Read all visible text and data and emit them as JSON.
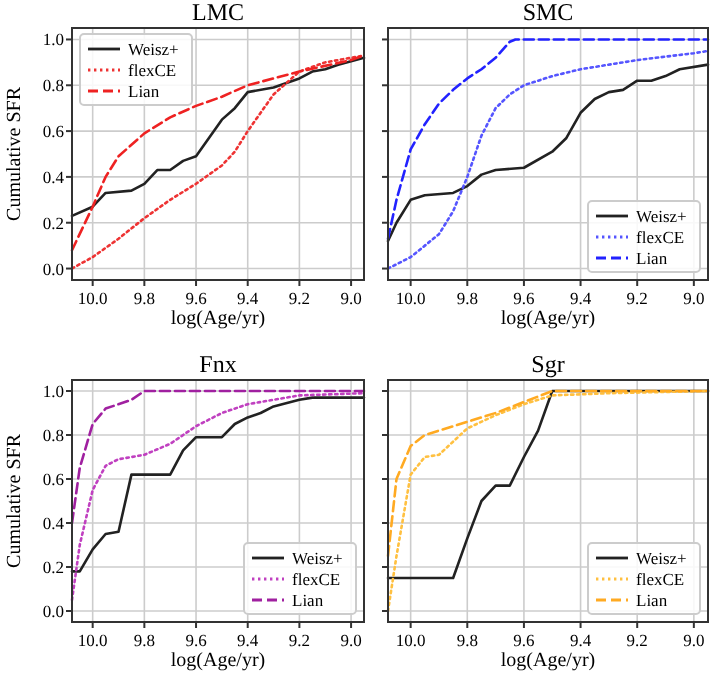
{
  "chart_data": [
    {
      "type": "line",
      "title": "LMC",
      "xlabel": "log(Age/yr)",
      "ylabel": "Cumulative SFR",
      "xlim": [
        10.08,
        8.95
      ],
      "ylim": [
        -0.05,
        1.05
      ],
      "xticks": [
        {
          "value": 10,
          "label": "10.0"
        },
        {
          "value": 9.8,
          "label": "9.8"
        },
        {
          "value": 9.6,
          "label": "9.6"
        },
        {
          "value": 9.4,
          "label": "9.4"
        },
        {
          "value": 9.2,
          "label": "9.2"
        },
        {
          "value": 9,
          "label": "9.0"
        }
      ],
      "yticks": [
        {
          "value": 0,
          "label": "0.0"
        },
        {
          "value": 0.2,
          "label": "0.2"
        },
        {
          "value": 0.4,
          "label": "0.4"
        },
        {
          "value": 0.6,
          "label": "0.6"
        },
        {
          "value": 0.8,
          "label": "0.8"
        },
        {
          "value": 1,
          "label": "1.0"
        }
      ],
      "grid": true,
      "legend": "top left",
      "series": [
        {
          "name": "Weisz+",
          "color": "#222222",
          "line_style": "solid",
          "x": [
            10.08,
            10,
            9.95,
            9.85,
            9.8,
            9.75,
            9.7,
            9.65,
            9.6,
            9.55,
            9.5,
            9.45,
            9.4,
            9.3,
            9.2,
            9.15,
            9.1,
            9.05,
            8.95
          ],
          "values": [
            0.23,
            0.27,
            0.33,
            0.34,
            0.37,
            0.43,
            0.43,
            0.47,
            0.49,
            0.57,
            0.65,
            0.7,
            0.77,
            0.79,
            0.83,
            0.86,
            0.87,
            0.89,
            0.92
          ]
        },
        {
          "name": "flexCE",
          "color": "#ee3333",
          "line_style": "dotted",
          "x": [
            10.08,
            10,
            9.9,
            9.8,
            9.7,
            9.6,
            9.5,
            9.45,
            9.4,
            9.3,
            9.2,
            9.1,
            8.95
          ],
          "values": [
            0,
            0.05,
            0.13,
            0.22,
            0.3,
            0.37,
            0.45,
            0.51,
            0.6,
            0.76,
            0.86,
            0.9,
            0.93
          ]
        },
        {
          "name": "Lian",
          "color": "#ee2222",
          "line_style": "dashed",
          "x": [
            10.08,
            10,
            9.95,
            9.9,
            9.8,
            9.7,
            9.6,
            9.5,
            9.4,
            9.2,
            9,
            8.95
          ],
          "values": [
            0.08,
            0.27,
            0.4,
            0.49,
            0.59,
            0.66,
            0.71,
            0.75,
            0.8,
            0.86,
            0.91,
            0.93
          ]
        }
      ]
    },
    {
      "type": "line",
      "title": "SMC",
      "xlabel": "log(Age/yr)",
      "tick_labels": "x",
      "xlim": [
        10.08,
        8.95
      ],
      "ylim": [
        -0.05,
        1.05
      ],
      "xticks": [
        {
          "value": 10,
          "label": "10.0"
        },
        {
          "value": 9.8,
          "label": "9.8"
        },
        {
          "value": 9.6,
          "label": "9.6"
        },
        {
          "value": 9.4,
          "label": "9.4"
        },
        {
          "value": 9.2,
          "label": "9.2"
        },
        {
          "value": 9,
          "label": "9.0"
        }
      ],
      "yticks": [
        0,
        0.2,
        0.4,
        0.6,
        0.8,
        1
      ],
      "grid": true,
      "legend": "bottom right",
      "series": [
        {
          "name": "Weisz+",
          "color": "#222222",
          "line_style": "solid",
          "x": [
            10.08,
            10.05,
            10,
            9.95,
            9.85,
            9.8,
            9.75,
            9.7,
            9.6,
            9.5,
            9.45,
            9.4,
            9.35,
            9.3,
            9.25,
            9.2,
            9.15,
            9.1,
            9.05,
            8.95
          ],
          "values": [
            0.12,
            0.2,
            0.3,
            0.32,
            0.33,
            0.36,
            0.41,
            0.43,
            0.44,
            0.51,
            0.57,
            0.68,
            0.74,
            0.77,
            0.78,
            0.82,
            0.82,
            0.84,
            0.87,
            0.89
          ]
        },
        {
          "name": "flexCE",
          "color": "#5555ff",
          "line_style": "dotted",
          "x": [
            10.08,
            10,
            9.9,
            9.85,
            9.8,
            9.75,
            9.7,
            9.65,
            9.6,
            9.5,
            9.4,
            9.2,
            9,
            8.95
          ],
          "values": [
            0,
            0.05,
            0.15,
            0.25,
            0.4,
            0.58,
            0.7,
            0.76,
            0.8,
            0.84,
            0.87,
            0.91,
            0.94,
            0.95
          ]
        },
        {
          "name": "Lian",
          "color": "#2222ff",
          "line_style": "dashed",
          "x": [
            10.08,
            10.05,
            10,
            9.95,
            9.9,
            9.85,
            9.8,
            9.75,
            9.7,
            9.65,
            9.63,
            8.95
          ],
          "values": [
            0.13,
            0.3,
            0.52,
            0.63,
            0.72,
            0.78,
            0.83,
            0.87,
            0.92,
            0.99,
            1,
            1
          ]
        }
      ]
    },
    {
      "type": "line",
      "title": "Fnx",
      "xlabel": "log(Age/yr)",
      "ylabel": "Cumulative SFR",
      "xlim": [
        10.08,
        8.95
      ],
      "ylim": [
        -0.05,
        1.05
      ],
      "xticks": [
        {
          "value": 10,
          "label": "10.0"
        },
        {
          "value": 9.8,
          "label": "9.8"
        },
        {
          "value": 9.6,
          "label": "9.6"
        },
        {
          "value": 9.4,
          "label": "9.4"
        },
        {
          "value": 9.2,
          "label": "9.2"
        },
        {
          "value": 9,
          "label": "9.0"
        }
      ],
      "yticks": [
        {
          "value": 0,
          "label": "0.0"
        },
        {
          "value": 0.2,
          "label": "0.2"
        },
        {
          "value": 0.4,
          "label": "0.4"
        },
        {
          "value": 0.6,
          "label": "0.6"
        },
        {
          "value": 0.8,
          "label": "0.8"
        },
        {
          "value": 1,
          "label": "1.0"
        }
      ],
      "grid": true,
      "legend": "bottom right",
      "series": [
        {
          "name": "Weisz+",
          "color": "#222222",
          "line_style": "solid",
          "x": [
            10.08,
            10.05,
            10,
            9.95,
            9.9,
            9.85,
            9.7,
            9.65,
            9.6,
            9.5,
            9.45,
            9.4,
            9.35,
            9.3,
            9.2,
            9.15,
            8.95
          ],
          "values": [
            0.18,
            0.18,
            0.28,
            0.35,
            0.36,
            0.62,
            0.62,
            0.73,
            0.79,
            0.79,
            0.85,
            0.88,
            0.9,
            0.93,
            0.96,
            0.97,
            0.97
          ]
        },
        {
          "name": "flexCE",
          "color": "#c040c0",
          "line_style": "dotted",
          "x": [
            10.08,
            10.05,
            10,
            9.95,
            9.9,
            9.8,
            9.7,
            9.6,
            9.5,
            9.4,
            9.2,
            8.95
          ],
          "values": [
            0.05,
            0.3,
            0.55,
            0.66,
            0.69,
            0.71,
            0.76,
            0.84,
            0.9,
            0.94,
            0.98,
            0.99
          ]
        },
        {
          "name": "Lian",
          "color": "#a020a0",
          "line_style": "dashed",
          "x": [
            10.08,
            10.05,
            10,
            9.95,
            9.85,
            9.8,
            8.95
          ],
          "values": [
            0.4,
            0.65,
            0.85,
            0.92,
            0.96,
            1,
            1
          ]
        }
      ]
    },
    {
      "type": "line",
      "title": "Sgr",
      "xlabel": "log(Age/yr)",
      "tick_labels": "x",
      "xlim": [
        10.08,
        8.95
      ],
      "ylim": [
        -0.05,
        1.05
      ],
      "xticks": [
        {
          "value": 10,
          "label": "10.0"
        },
        {
          "value": 9.8,
          "label": "9.8"
        },
        {
          "value": 9.6,
          "label": "9.6"
        },
        {
          "value": 9.4,
          "label": "9.4"
        },
        {
          "value": 9.2,
          "label": "9.2"
        },
        {
          "value": 9,
          "label": "9.0"
        }
      ],
      "yticks": [
        0,
        0.2,
        0.4,
        0.6,
        0.8,
        1
      ],
      "grid": true,
      "legend": "bottom right",
      "series": [
        {
          "name": "Weisz+",
          "color": "#222222",
          "line_style": "solid",
          "x": [
            10.08,
            9.85,
            9.8,
            9.75,
            9.7,
            9.65,
            9.6,
            9.55,
            9.5,
            8.95
          ],
          "values": [
            0.15,
            0.15,
            0.33,
            0.5,
            0.57,
            0.57,
            0.7,
            0.82,
            1,
            1
          ]
        },
        {
          "name": "flexCE",
          "color": "#ffc040",
          "line_style": "dotted",
          "x": [
            10.08,
            10.05,
            10,
            9.95,
            9.9,
            9.85,
            9.8,
            9.7,
            9.6,
            9.5,
            9.3,
            8.95
          ],
          "values": [
            0,
            0.25,
            0.62,
            0.7,
            0.71,
            0.77,
            0.83,
            0.89,
            0.94,
            0.98,
            0.99,
            1
          ]
        },
        {
          "name": "Lian",
          "color": "#ffaa22",
          "line_style": "dashed",
          "x": [
            10.08,
            10.05,
            10,
            9.95,
            9.9,
            9.8,
            9.7,
            9.6,
            9.5,
            8.95
          ],
          "values": [
            0.25,
            0.6,
            0.75,
            0.8,
            0.82,
            0.86,
            0.9,
            0.95,
            1,
            1
          ]
        }
      ]
    }
  ]
}
